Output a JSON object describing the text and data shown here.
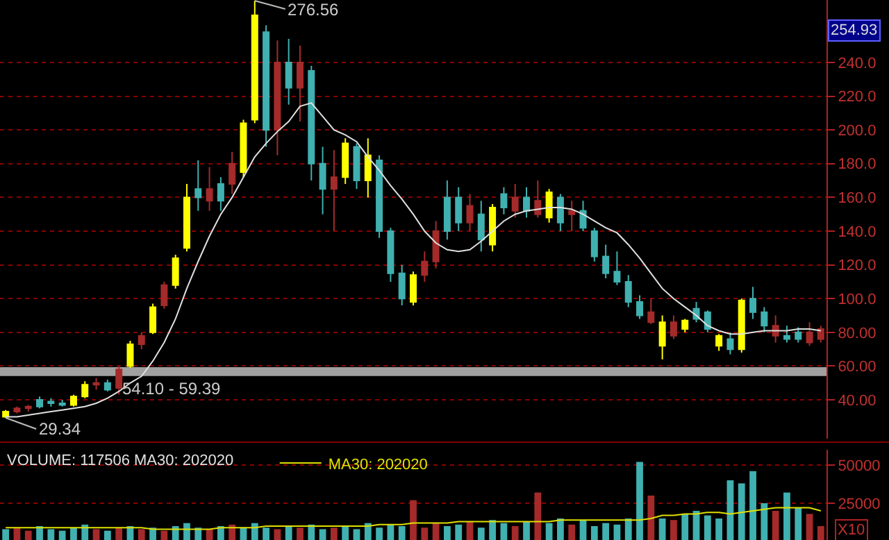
{
  "chart_data": [
    {
      "type": "candlestick",
      "categories": [
        null,
        null,
        null,
        null,
        null,
        null,
        null,
        null,
        null,
        null,
        null,
        null,
        null,
        null,
        null,
        null,
        null,
        null,
        null,
        null,
        null,
        null,
        null,
        null,
        null,
        null,
        null,
        null,
        null,
        null,
        null,
        null,
        null,
        null,
        null,
        null,
        null,
        null,
        null,
        null,
        null,
        null,
        null,
        null,
        null,
        null,
        null,
        null,
        null,
        null,
        null,
        null,
        null,
        null,
        null,
        null,
        null,
        null,
        null,
        null,
        null,
        null,
        null,
        null,
        null,
        null,
        null,
        null,
        null,
        null,
        null,
        null,
        null
      ],
      "ohlc": [
        [
          30,
          34,
          29.34,
          33
        ],
        [
          33,
          36,
          32,
          35
        ],
        [
          35,
          37,
          33,
          36
        ],
        [
          40,
          42,
          35,
          36
        ],
        [
          39,
          41,
          36,
          38
        ],
        [
          38,
          40,
          36,
          37
        ],
        [
          37,
          43,
          36,
          42
        ],
        [
          42,
          51,
          41,
          49
        ],
        [
          49,
          53,
          46,
          50
        ],
        [
          50,
          52,
          45,
          46
        ],
        [
          47,
          60,
          43,
          58
        ],
        [
          60,
          75,
          59,
          73
        ],
        [
          73,
          80,
          70,
          78
        ],
        [
          80,
          97,
          79,
          95
        ],
        [
          96,
          110,
          94,
          108
        ],
        [
          108,
          126,
          106,
          124
        ],
        [
          130,
          168,
          128,
          160
        ],
        [
          165,
          182,
          152,
          160
        ],
        [
          158,
          178,
          152,
          165
        ],
        [
          168,
          172,
          152,
          158
        ],
        [
          168,
          187,
          162,
          180
        ],
        [
          175,
          206,
          172,
          204
        ],
        [
          206,
          276.56,
          204,
          268
        ],
        [
          258,
          262,
          190,
          200
        ],
        [
          200,
          253,
          185,
          240
        ],
        [
          240,
          254,
          215,
          225
        ],
        [
          225,
          250,
          205,
          240
        ],
        [
          235,
          238,
          170,
          180
        ],
        [
          180,
          190,
          150,
          165
        ],
        [
          165,
          188,
          140,
          172
        ],
        [
          172,
          195,
          168,
          192
        ],
        [
          190,
          192,
          165,
          170
        ],
        [
          170,
          195,
          160,
          185
        ],
        [
          182,
          185,
          136,
          140
        ],
        [
          140,
          142,
          110,
          115
        ],
        [
          115,
          120,
          96,
          100
        ],
        [
          98,
          116,
          96,
          114
        ],
        [
          114,
          128,
          110,
          122
        ],
        [
          122,
          146,
          118,
          140
        ],
        [
          160,
          170,
          135,
          140
        ],
        [
          160,
          166,
          140,
          145
        ],
        [
          145,
          162,
          140,
          155
        ],
        [
          150,
          158,
          128,
          135
        ],
        [
          132,
          156,
          128,
          154
        ],
        [
          162,
          166,
          150,
          154
        ],
        [
          152,
          168,
          148,
          160
        ],
        [
          160,
          166,
          148,
          152
        ],
        [
          150,
          170,
          148,
          158
        ],
        [
          148,
          165,
          145,
          163
        ],
        [
          160,
          162,
          140,
          145
        ],
        [
          150,
          158,
          140,
          152
        ],
        [
          152,
          158,
          140,
          142
        ],
        [
          140,
          142,
          122,
          125
        ],
        [
          125,
          132,
          112,
          115
        ],
        [
          116,
          128,
          108,
          110
        ],
        [
          110,
          114,
          95,
          98
        ],
        [
          98,
          102,
          88,
          90
        ],
        [
          86,
          100,
          85,
          92
        ],
        [
          72,
          90,
          64,
          86
        ],
        [
          78,
          90,
          76,
          86
        ],
        [
          82,
          88,
          80,
          87
        ],
        [
          94,
          98,
          86,
          88
        ],
        [
          92,
          93,
          80,
          82
        ],
        [
          72,
          79,
          69,
          78
        ],
        [
          76,
          80,
          67,
          70
        ],
        [
          70,
          100,
          68,
          99
        ],
        [
          100,
          107,
          88,
          92
        ],
        [
          92,
          95,
          80,
          84
        ],
        [
          78,
          90,
          74,
          84
        ],
        [
          78,
          84,
          74,
          76
        ],
        [
          80,
          83,
          74,
          76
        ],
        [
          74,
          86,
          72,
          80
        ],
        [
          76,
          84,
          74,
          82
        ]
      ],
      "colors": [
        "#ffff00",
        "#a52a2a",
        "#a52a2a",
        "#40b0b0",
        "#40b0b0",
        "#40b0b0",
        "#ffff00",
        "#ffff00",
        "#a52a2a",
        "#40b0b0",
        "#a52a2a",
        "#ffff00",
        "#a52a2a",
        "#ffff00",
        "#a52a2a",
        "#ffff00",
        "#ffff00",
        "#40b0b0",
        "#a52a2a",
        "#40b0b0",
        "#a52a2a",
        "#ffff00",
        "#ffff00",
        "#40b0b0",
        "#a52a2a",
        "#40b0b0",
        "#a52a2a",
        "#40b0b0",
        "#40b0b0",
        "#a52a2a",
        "#ffff00",
        "#40b0b0",
        "#ffff00",
        "#40b0b0",
        "#40b0b0",
        "#40b0b0",
        "#ffff00",
        "#a52a2a",
        "#a52a2a",
        "#40b0b0",
        "#40b0b0",
        "#a52a2a",
        "#40b0b0",
        "#ffff00",
        "#40b0b0",
        "#a52a2a",
        "#40b0b0",
        "#a52a2a",
        "#ffff00",
        "#40b0b0",
        "#a52a2a",
        "#40b0b0",
        "#40b0b0",
        "#40b0b0",
        "#40b0b0",
        "#40b0b0",
        "#40b0b0",
        "#a52a2a",
        "#ffff00",
        "#a52a2a",
        "#ffff00",
        "#40b0b0",
        "#40b0b0",
        "#ffff00",
        "#40b0b0",
        "#ffff00",
        "#40b0b0",
        "#40b0b0",
        "#a52a2a",
        "#40b0b0",
        "#40b0b0",
        "#a52a2a",
        "#a52a2a"
      ],
      "series": [
        {
          "type": "line",
          "color": "#e0e0e0",
          "values": [
            30,
            30,
            31,
            32,
            33,
            34,
            35,
            36,
            38,
            41,
            45,
            50,
            54,
            63,
            74,
            88,
            106,
            122,
            137,
            150,
            160,
            172,
            184,
            192,
            199,
            205,
            214,
            216,
            208,
            200,
            197,
            193,
            184,
            176,
            167,
            159,
            150,
            140,
            133,
            129,
            128,
            129,
            134,
            140,
            146,
            150,
            152,
            153,
            154,
            154,
            153,
            150,
            146,
            142,
            139,
            132,
            124,
            115,
            106,
            100,
            95,
            90,
            84,
            81,
            79,
            79,
            80,
            81,
            81,
            81,
            82,
            82,
            81
          ]
        }
      ],
      "ylim": [
        17,
        277
      ],
      "yticks": [
        {
          "value": 40,
          "label": "40.00"
        },
        {
          "value": 60,
          "label": "60.00"
        },
        {
          "value": 80,
          "label": "80.00"
        },
        {
          "value": 100,
          "label": "100.0"
        },
        {
          "value": 120,
          "label": "120.0"
        },
        {
          "value": 140,
          "label": "140.0"
        },
        {
          "value": 160,
          "label": "160.0"
        },
        {
          "value": 180,
          "label": "180.0"
        },
        {
          "value": 200,
          "label": "200.0"
        },
        {
          "value": 220,
          "label": "220.0"
        },
        {
          "value": 240,
          "label": "240.0"
        }
      ],
      "bands": [
        {
          "axis": "y",
          "from": 54.1,
          "to": 59.39,
          "label": "54.10 - 59.39",
          "color": "#a0a0a0"
        }
      ],
      "annotations": [
        "276.56",
        "29.34",
        "254.93"
      ],
      "grid": "y",
      "tick_labels": "y",
      "legend": false
    },
    {
      "type": "bar",
      "categories": [
        null,
        null,
        null,
        null,
        null,
        null,
        null,
        null,
        null,
        null,
        null,
        null,
        null,
        null,
        null,
        null,
        null,
        null,
        null,
        null,
        null,
        null,
        null,
        null,
        null,
        null,
        null,
        null,
        null,
        null,
        null,
        null,
        null,
        null,
        null,
        null,
        null,
        null,
        null,
        null,
        null,
        null,
        null,
        null,
        null,
        null,
        null,
        null,
        null,
        null,
        null,
        null,
        null,
        null,
        null,
        null,
        null,
        null,
        null,
        null,
        null,
        null,
        null,
        null,
        null,
        null,
        null,
        null,
        null,
        null,
        null,
        null,
        null
      ],
      "series": [
        {
          "type": "bar",
          "colors": [
            "#40b0b0",
            "#a52a2a",
            "#a52a2a",
            "#40b0b0",
            "#40b0b0",
            "#40b0b0",
            "#40b0b0",
            "#40b0b0",
            "#a52a2a",
            "#40b0b0",
            "#a52a2a",
            "#40b0b0",
            "#a52a2a",
            "#40b0b0",
            "#a52a2a",
            "#40b0b0",
            "#40b0b0",
            "#40b0b0",
            "#a52a2a",
            "#40b0b0",
            "#a52a2a",
            "#40b0b0",
            "#40b0b0",
            "#40b0b0",
            "#a52a2a",
            "#40b0b0",
            "#a52a2a",
            "#40b0b0",
            "#40b0b0",
            "#a52a2a",
            "#40b0b0",
            "#40b0b0",
            "#40b0b0",
            "#40b0b0",
            "#40b0b0",
            "#40b0b0",
            "#a52a2a",
            "#a52a2a",
            "#a52a2a",
            "#40b0b0",
            "#40b0b0",
            "#a52a2a",
            "#40b0b0",
            "#40b0b0",
            "#40b0b0",
            "#a52a2a",
            "#40b0b0",
            "#a52a2a",
            "#40b0b0",
            "#40b0b0",
            "#a52a2a",
            "#40b0b0",
            "#40b0b0",
            "#40b0b0",
            "#40b0b0",
            "#40b0b0",
            "#40b0b0",
            "#a52a2a",
            "#40b0b0",
            "#a52a2a",
            "#40b0b0",
            "#40b0b0",
            "#40b0b0",
            "#40b0b0",
            "#40b0b0",
            "#40b0b0",
            "#40b0b0",
            "#40b0b0",
            "#a52a2a",
            "#40b0b0",
            "#40b0b0",
            "#a52a2a",
            "#a52a2a"
          ],
          "values": [
            8000,
            9000,
            7000,
            10000,
            8000,
            7000,
            9000,
            11000,
            8000,
            7000,
            9000,
            10000,
            8000,
            9000,
            7000,
            10000,
            12000,
            9000,
            8000,
            10000,
            11000,
            9000,
            12000,
            9000,
            8000,
            10000,
            9000,
            11000,
            8000,
            9000,
            10000,
            8000,
            12000,
            9000,
            11000,
            10000,
            27000,
            9000,
            12000,
            10000,
            11000,
            13000,
            9000,
            14000,
            12000,
            10000,
            13000,
            32000,
            12000,
            15000,
            11000,
            14000,
            10000,
            12000,
            11000,
            15000,
            52000,
            30000,
            15000,
            14000,
            18000,
            20000,
            17000,
            15000,
            40000,
            38000,
            46000,
            25000,
            20000,
            32000,
            22000,
            18000,
            10000
          ]
        },
        {
          "type": "line",
          "name": "MA30: 202020",
          "color": "#e0e000",
          "values": [
            9000,
            9000,
            9000,
            9000,
            9000,
            9000,
            9000,
            9000,
            9000,
            9000,
            9000,
            9000,
            9000,
            8000,
            8000,
            8000,
            8000,
            8000,
            8000,
            9000,
            9000,
            9000,
            9000,
            10000,
            10000,
            10000,
            10000,
            10000,
            10000,
            10000,
            10000,
            10000,
            10000,
            11000,
            11000,
            11000,
            12000,
            12000,
            12000,
            12000,
            13000,
            13000,
            13000,
            13000,
            13000,
            13000,
            13000,
            13000,
            13000,
            14000,
            14000,
            14000,
            14000,
            14000,
            14000,
            14000,
            14000,
            15000,
            17000,
            17000,
            18000,
            18000,
            19000,
            19000,
            18000,
            19000,
            20000,
            21000,
            22000,
            22000,
            22000,
            22000,
            20000
          ]
        }
      ],
      "ylim": [
        0,
        60000
      ],
      "yticks": [
        25000,
        50000
      ],
      "annotations": [
        "VOLUME: 117506 MA30: 202020",
        "X10"
      ],
      "grid": "y",
      "tick_labels": "y",
      "legend": "top"
    }
  ]
}
